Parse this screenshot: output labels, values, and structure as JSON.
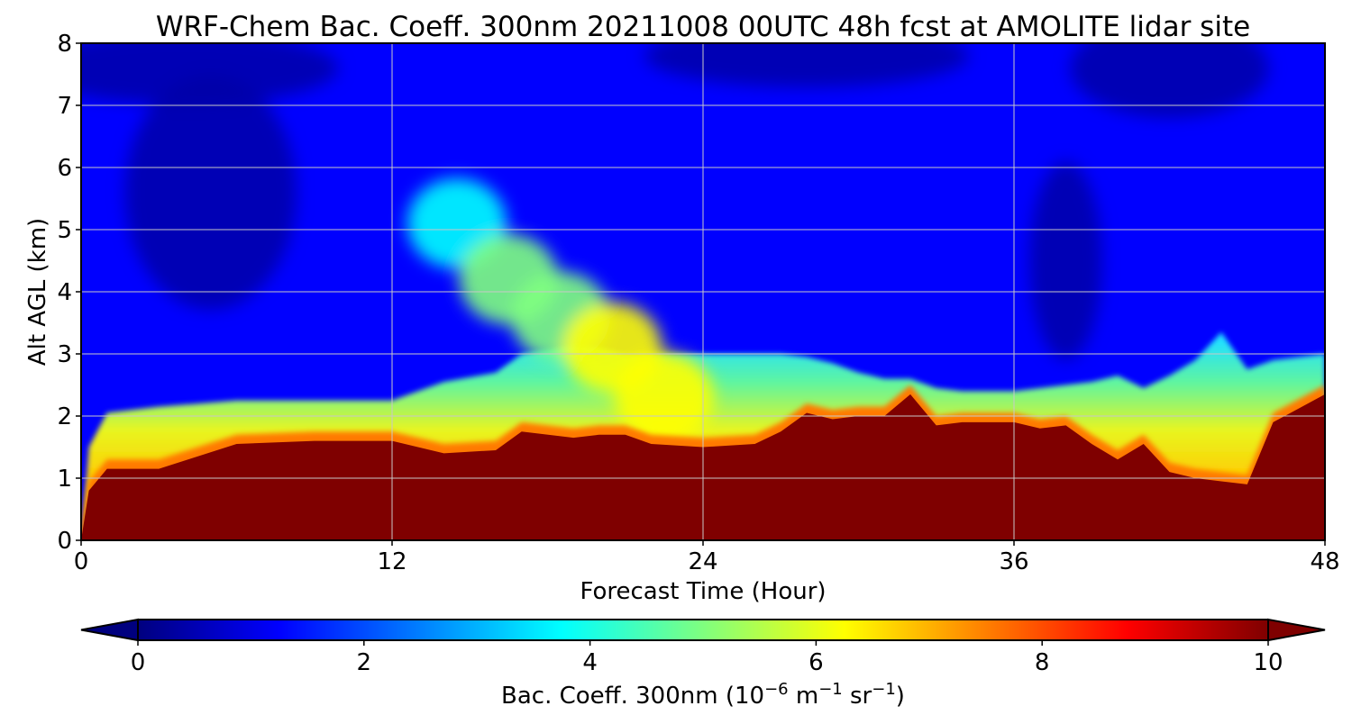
{
  "chart_data": {
    "type": "heatmap",
    "title": "WRF-Chem Bac. Coeff. 300nm  20211008 00UTC 48h fcst at AMOLITE lidar site",
    "xlabel": "Forecast Time (Hour)",
    "ylabel": "Alt AGL (km)",
    "xlim": [
      0,
      48
    ],
    "ylim": [
      0,
      8
    ],
    "x_ticks": [
      0,
      12,
      24,
      36,
      48
    ],
    "y_ticks": [
      0,
      1,
      2,
      3,
      4,
      5,
      6,
      7,
      8
    ],
    "grid": true,
    "colormap": "jet",
    "colorbar": {
      "label_main": "Bac. Coeff. 300nm  (10",
      "exp1": "−6",
      "mid": " m",
      "exp2": "−1",
      "end": " sr",
      "exp3": "−1",
      "close": ")",
      "range": [
        0,
        10
      ],
      "ticks": [
        0,
        2,
        4,
        6,
        8,
        10
      ],
      "extend": "both",
      "placement": "bottom"
    },
    "x": [
      0,
      0.3,
      1,
      3,
      6,
      9,
      12,
      14,
      16,
      17,
      19,
      20,
      21,
      22,
      24,
      26,
      27,
      28,
      29,
      30,
      31,
      32,
      33,
      34,
      36,
      37,
      38,
      39,
      40,
      41,
      42,
      43,
      44,
      45,
      46,
      48
    ],
    "series": [
      {
        "name": "top of high-coefficient (>10) layer, km",
        "values": [
          0,
          0.8,
          1.15,
          1.15,
          1.55,
          1.6,
          1.6,
          1.4,
          1.45,
          1.75,
          1.65,
          1.7,
          1.7,
          1.55,
          1.5,
          1.55,
          1.75,
          2.05,
          1.95,
          2.0,
          2.0,
          2.35,
          1.85,
          1.9,
          1.9,
          1.8,
          1.85,
          1.55,
          1.3,
          1.55,
          1.1,
          1.0,
          0.95,
          0.9,
          1.9,
          2.35
        ]
      },
      {
        "name": "top of enhanced (>3) layer, km",
        "values": [
          0,
          1.5,
          2.05,
          2.15,
          2.25,
          2.25,
          2.25,
          2.55,
          2.7,
          3.0,
          3.15,
          3.1,
          3.0,
          3.0,
          3.0,
          3.0,
          3.0,
          2.95,
          2.85,
          2.7,
          2.6,
          2.6,
          2.45,
          2.4,
          2.4,
          2.45,
          2.5,
          2.55,
          2.65,
          2.45,
          2.65,
          2.9,
          3.35,
          2.75,
          2.9,
          3.0
        ]
      }
    ],
    "plume": [
      {
        "x": 14.5,
        "y": 5.1,
        "v": 4.0
      },
      {
        "x": 16.5,
        "y": 4.2,
        "v": 4.8
      },
      {
        "x": 18.5,
        "y": 3.6,
        "v": 5.6
      },
      {
        "x": 20.5,
        "y": 3.1,
        "v": 6.4
      },
      {
        "x": 22.5,
        "y": 2.3,
        "v": 6.8
      }
    ]
  }
}
